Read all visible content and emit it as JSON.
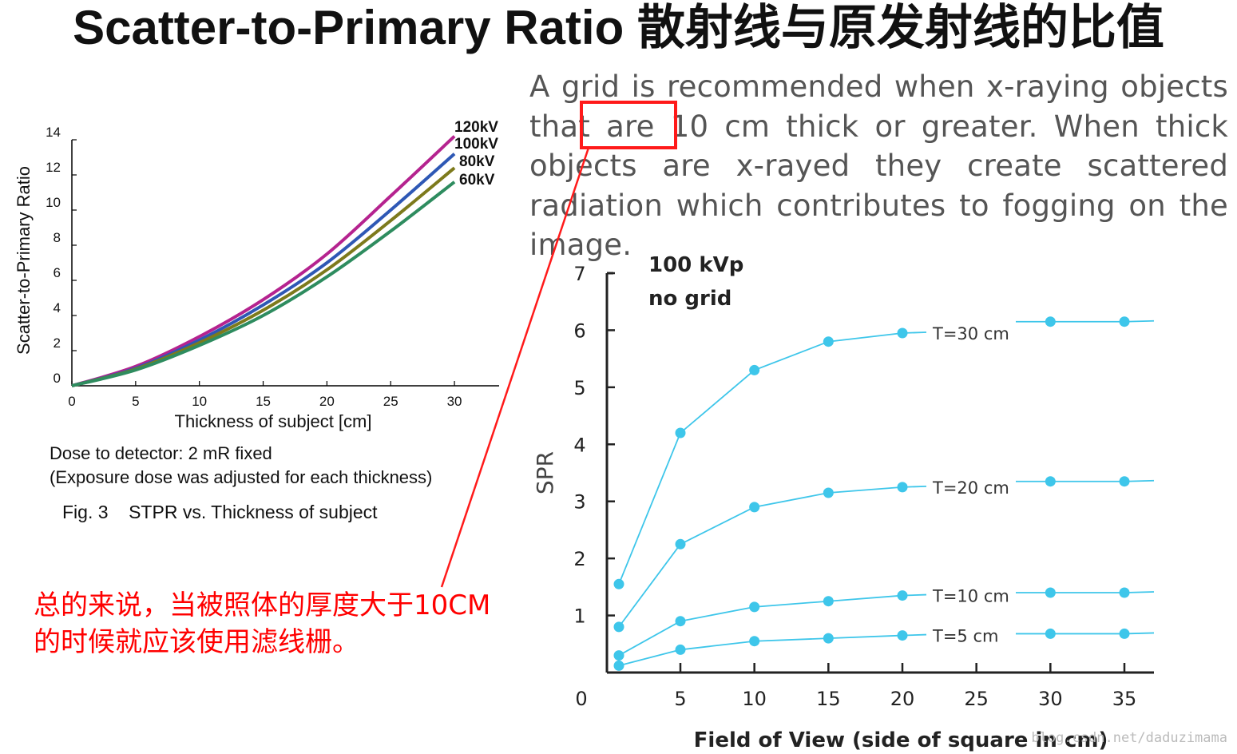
{
  "slide": {
    "title": "Scatter-to-Primary Ratio 散射线与原发射线的比值",
    "description_before": "A grid is recommended when x-raying objects that are ",
    "description_highlight": "10 cm",
    "description_after": " thick or greater. When thick objects are x-rayed they create scattered radiation which contributes to fogging on the image.",
    "summary": "总的来说，当被照体的厚度大于10CM的时候就应该使用滤线栅。",
    "watermark": "blog.csdn.net/daduzimama",
    "highlight_color": "#ff1a1a"
  },
  "left_figure": {
    "dose_line": "Dose to detector: 2 mR fixed",
    "exposure_line": "(Exposure dose was adjusted for each thickness)",
    "caption": "Fig. 3    STPR vs. Thickness of subject"
  },
  "chart_data": [
    {
      "type": "line",
      "xlabel": "Thickness of subject [cm]",
      "ylabel": "Scatter-to-Primary Ratio",
      "xlim": [
        0,
        33
      ],
      "ylim": [
        0,
        14
      ],
      "xticks": [
        "0",
        "5",
        "10",
        "15",
        "20",
        "25",
        "30"
      ],
      "yticks": [
        "0",
        "2",
        "4",
        "6",
        "8",
        "10",
        "12",
        "14"
      ],
      "grid": false,
      "legend": "inline labels at line ends",
      "x": [
        0,
        5,
        10,
        15,
        20,
        25,
        30
      ],
      "series": [
        {
          "name": "120kV",
          "color": "#b5238f",
          "values": [
            0,
            1.1,
            2.8,
            4.9,
            7.5,
            10.8,
            14.2
          ]
        },
        {
          "name": "100kV",
          "color": "#2e58b5",
          "values": [
            0,
            1.0,
            2.6,
            4.6,
            7.0,
            10.0,
            13.2
          ]
        },
        {
          "name": "80kV",
          "color": "#7d7a1c",
          "values": [
            0,
            0.95,
            2.45,
            4.3,
            6.6,
            9.4,
            12.4
          ]
        },
        {
          "name": "60kV",
          "color": "#2e8c5f",
          "values": [
            0,
            0.9,
            2.3,
            4.0,
            6.2,
            8.8,
            11.6
          ]
        }
      ]
    },
    {
      "type": "line",
      "title": "100 kVp",
      "subtitle": "no grid",
      "xlabel": "Field of View (side of square in cm)",
      "ylabel": "SPR",
      "xlim": [
        0,
        37
      ],
      "ylim": [
        0,
        7
      ],
      "xticks": [
        "0",
        "5",
        "10",
        "15",
        "20",
        "25",
        "30",
        "35"
      ],
      "yticks": [
        "1",
        "2",
        "3",
        "4",
        "5",
        "6",
        "7"
      ],
      "grid": false,
      "legend": "inline labels near right end",
      "color": "#3ec6ea",
      "x": [
        1,
        5,
        10,
        15,
        20,
        30,
        35
      ],
      "series": [
        {
          "name": "T=30 cm",
          "values": [
            1.55,
            4.2,
            5.3,
            5.8,
            5.95,
            6.15,
            6.15
          ]
        },
        {
          "name": "T=20 cm",
          "values": [
            0.8,
            2.25,
            2.9,
            3.15,
            3.25,
            3.35,
            3.35
          ]
        },
        {
          "name": "T=10 cm",
          "values": [
            0.3,
            0.9,
            1.15,
            1.25,
            1.35,
            1.4,
            1.4
          ]
        },
        {
          "name": "T=5 cm",
          "values": [
            0.12,
            0.4,
            0.55,
            0.6,
            0.65,
            0.68,
            0.68
          ]
        }
      ]
    }
  ]
}
